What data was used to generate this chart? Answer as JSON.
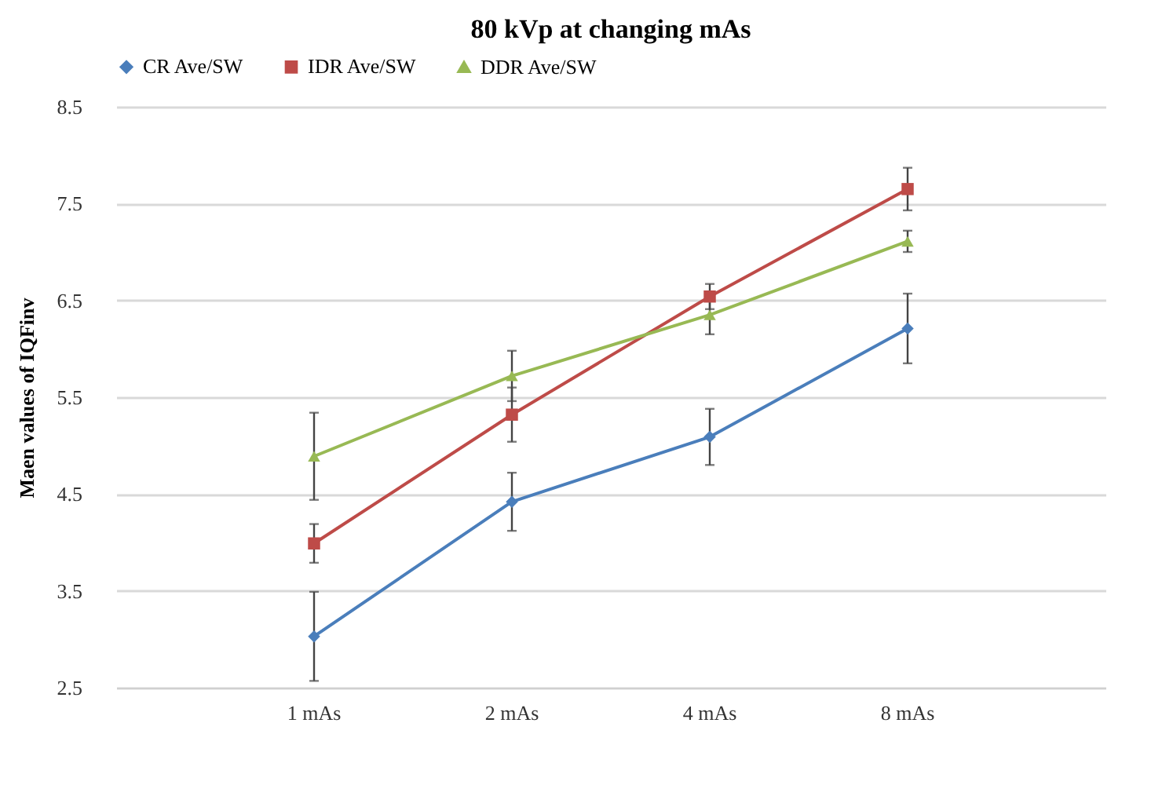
{
  "chart_data": {
    "type": "line",
    "title": "80 kVp at changing mAs",
    "ylabel": "Maen values of IQFinv",
    "categories": [
      "1 mAs",
      "2 mAs",
      "4 mAs",
      "8 mAs"
    ],
    "series": [
      {
        "name": "CR Ave/SW",
        "color": "#4a7ebb",
        "marker": "diamond",
        "values": [
          3.03,
          4.42,
          5.09,
          6.21
        ],
        "errors": [
          0.46,
          0.3,
          0.29,
          0.36
        ]
      },
      {
        "name": "IDR Ave/SW",
        "color": "#be4b48",
        "marker": "square",
        "values": [
          3.99,
          5.32,
          6.54,
          7.65
        ],
        "errors": [
          0.2,
          0.28,
          0.13,
          0.22
        ]
      },
      {
        "name": "DDR Ave/SW",
        "color": "#98b954",
        "marker": "triangle",
        "values": [
          4.89,
          5.72,
          6.35,
          7.11
        ],
        "errors": [
          0.45,
          0.26,
          0.2,
          0.11
        ]
      }
    ],
    "ylim": [
      2.5,
      8.5
    ],
    "yticks": [
      2.5,
      3.5,
      4.5,
      5.5,
      6.5,
      7.5,
      8.5
    ],
    "grid": "y",
    "legend": "top"
  }
}
